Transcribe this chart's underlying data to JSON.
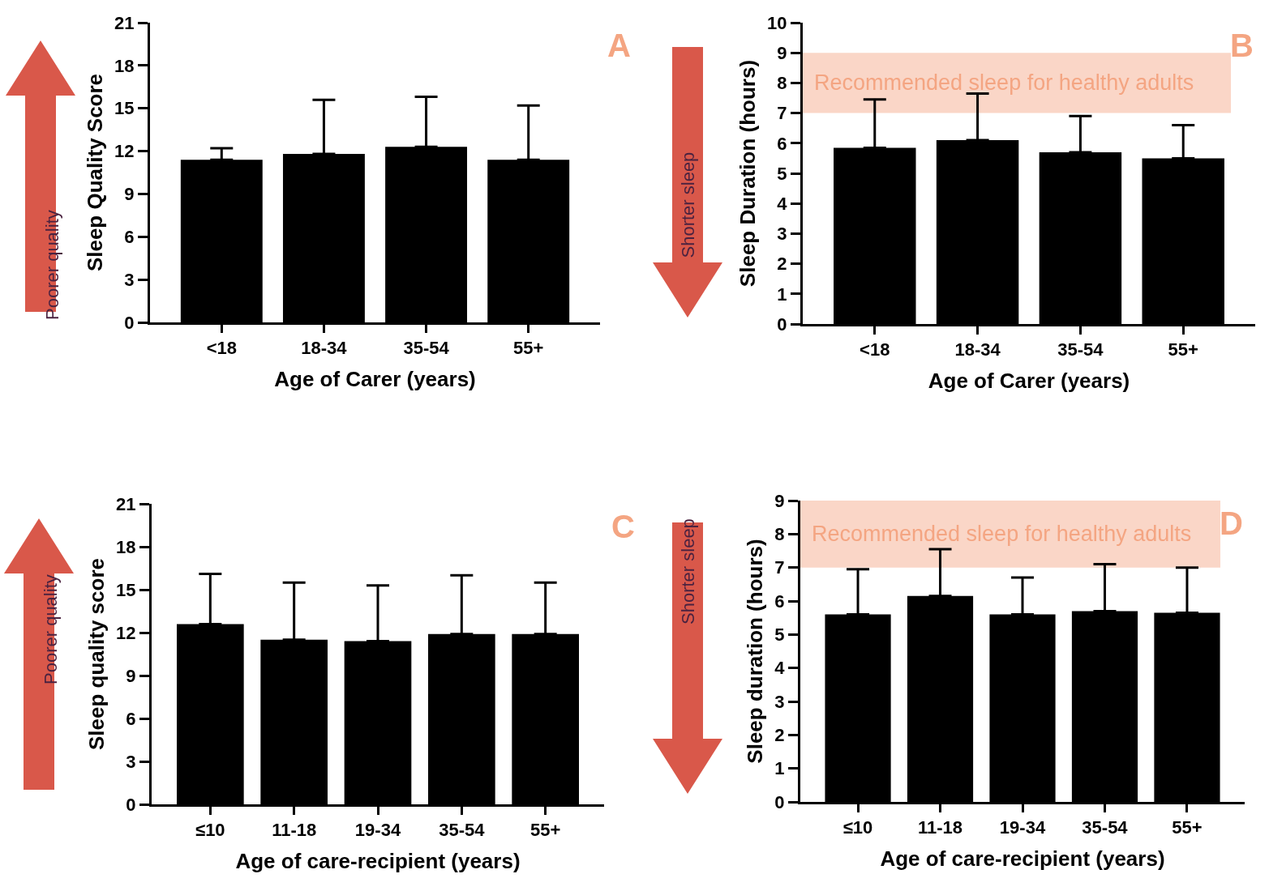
{
  "chart_data": [
    {
      "type": "bar",
      "ylabel": "Sleep Quality Score",
      "xlabel": "Age of Carer (years)",
      "categories": [
        "<18",
        "18-34",
        "35-54",
        "55+"
      ],
      "values": [
        11.4,
        11.8,
        12.3,
        11.4
      ],
      "color": "#000000",
      "errors": [
        [
          11.4,
          12.2
        ],
        [
          11.8,
          15.6
        ],
        [
          12.3,
          15.8
        ],
        [
          11.4,
          15.2
        ]
      ],
      "ylim": [
        0,
        21
      ],
      "yticks": [
        0,
        3,
        6,
        9,
        12,
        15,
        18,
        21
      ],
      "annotations": [
        "A",
        "Poorer quality"
      ]
    },
    {
      "type": "bar",
      "ylabel": "Sleep Duration (hours)",
      "xlabel": "Age of Carer (years)",
      "categories": [
        "<18",
        "18-34",
        "35-54",
        "55+"
      ],
      "values": [
        5.85,
        6.1,
        5.7,
        5.5
      ],
      "color": "#000000",
      "errors": [
        [
          5.85,
          7.45
        ],
        [
          6.1,
          7.65
        ],
        [
          5.7,
          6.9
        ],
        [
          5.5,
          6.6
        ]
      ],
      "ylim": [
        0,
        10
      ],
      "yticks": [
        0,
        1,
        2,
        3,
        4,
        5,
        6,
        7,
        8,
        9,
        10
      ],
      "bands": [
        {
          "axis": "y",
          "from": 7,
          "to": 9,
          "label": "Recommended sleep for healthy adults",
          "color": "#f4a582"
        }
      ],
      "annotations": [
        "B",
        "Shorter sleep"
      ]
    },
    {
      "type": "bar",
      "ylabel": "Sleep quality score",
      "xlabel": "Age of care-recipient (years)",
      "categories": [
        "≤10",
        "11-18",
        "19-34",
        "35-54",
        "55+"
      ],
      "values": [
        12.6,
        11.5,
        11.4,
        11.9,
        11.9
      ],
      "color": "#000000",
      "errors": [
        [
          12.6,
          16.1
        ],
        [
          11.5,
          15.5
        ],
        [
          11.4,
          15.3
        ],
        [
          11.9,
          16.0
        ],
        [
          11.9,
          15.5
        ]
      ],
      "ylim": [
        0,
        21
      ],
      "yticks": [
        0,
        3,
        6,
        9,
        12,
        15,
        18,
        21
      ],
      "annotations": [
        "C",
        "Poorer quality"
      ]
    },
    {
      "type": "bar",
      "ylabel": "Sleep duration (hours)",
      "xlabel": "Age of care-recipient (years)",
      "categories": [
        "≤10",
        "11-18",
        "19-34",
        "35-54",
        "55+"
      ],
      "values": [
        5.6,
        6.15,
        5.6,
        5.7,
        5.65
      ],
      "color": "#000000",
      "errors": [
        [
          5.6,
          6.95
        ],
        [
          6.15,
          7.55
        ],
        [
          5.6,
          6.7
        ],
        [
          5.7,
          7.1
        ],
        [
          5.65,
          7.0
        ]
      ],
      "ylim": [
        0,
        9
      ],
      "yticks": [
        0,
        1,
        2,
        3,
        4,
        5,
        6,
        7,
        8,
        9
      ],
      "bands": [
        {
          "axis": "y",
          "from": 7,
          "to": 9,
          "label": "Recommended sleep for healthy adults",
          "color": "#f4a582"
        }
      ],
      "annotations": [
        "D",
        "Shorter sleep"
      ]
    }
  ]
}
